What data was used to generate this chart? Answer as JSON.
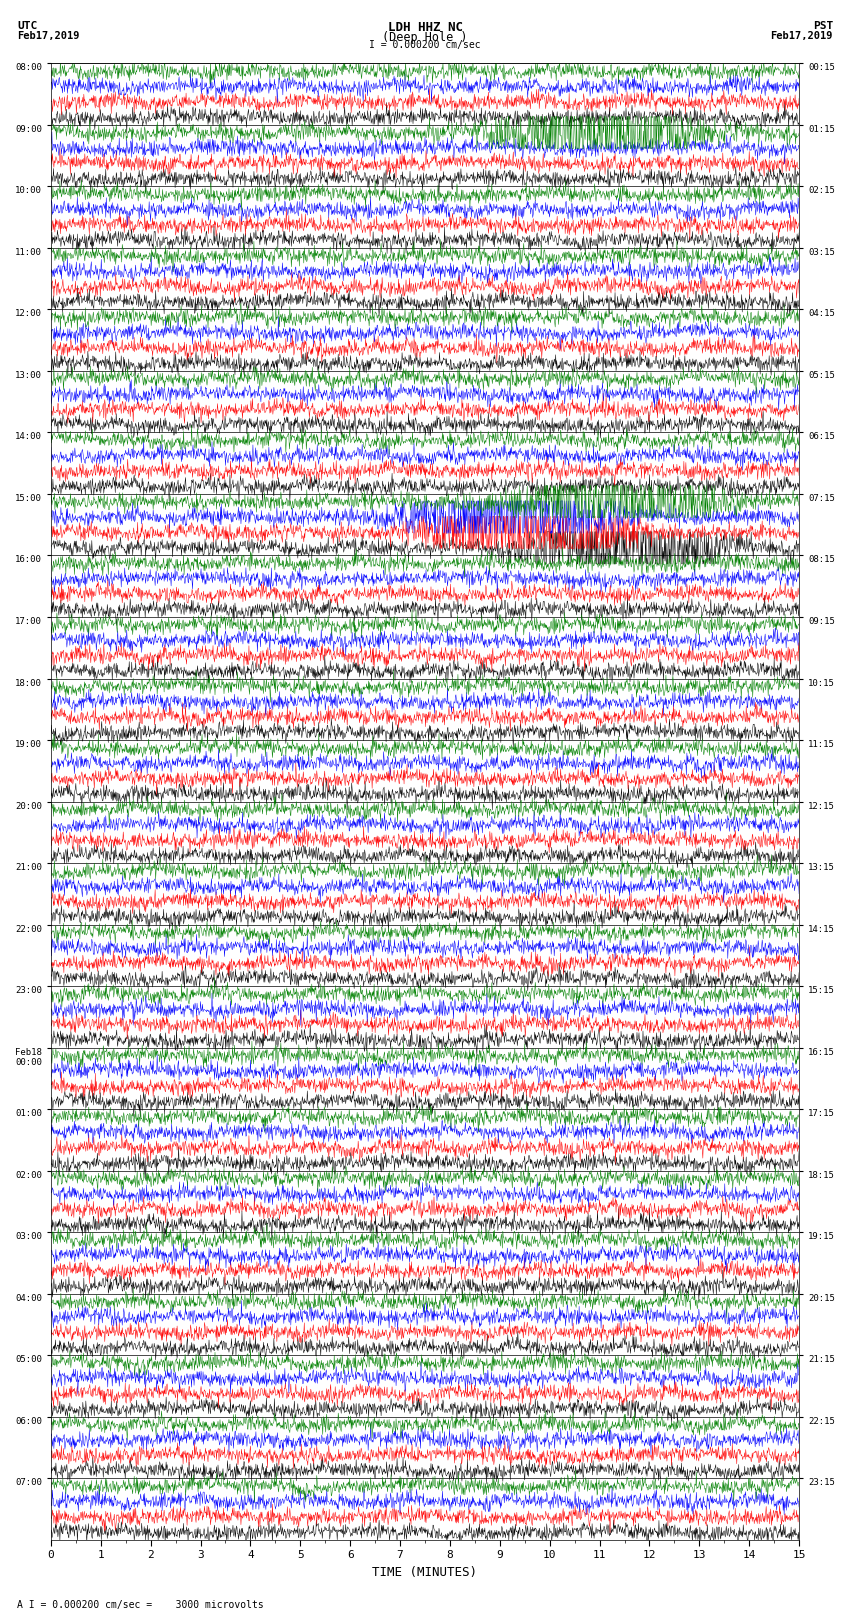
{
  "title_line1": "LDH HHZ NC",
  "title_line2": "(Deep Hole )",
  "scale_label": "I = 0.000200 cm/sec",
  "footer_label": "A I = 0.000200 cm/sec =    3000 microvolts",
  "xlabel": "TIME (MINUTES)",
  "utc_label1": "UTC",
  "utc_label2": "Feb17,2019",
  "pst_label1": "PST",
  "pst_label2": "Feb17,2019",
  "num_rows": 24,
  "minutes_per_row": 15,
  "colors": [
    "#000000",
    "#ff0000",
    "#0000ff",
    "#008000"
  ],
  "traces_per_row": 4,
  "bg_color": "#ffffff",
  "line_width": 0.35,
  "fig_width": 8.5,
  "fig_height": 16.13,
  "left_tick_labels": [
    "08:00",
    "09:00",
    "10:00",
    "11:00",
    "12:00",
    "13:00",
    "14:00",
    "15:00",
    "16:00",
    "17:00",
    "18:00",
    "19:00",
    "20:00",
    "21:00",
    "22:00",
    "23:00",
    "Feb18\n00:00",
    "01:00",
    "02:00",
    "03:00",
    "04:00",
    "05:00",
    "06:00",
    "07:00"
  ],
  "right_tick_labels": [
    "00:15",
    "01:15",
    "02:15",
    "03:15",
    "04:15",
    "05:15",
    "06:15",
    "07:15",
    "08:15",
    "09:15",
    "10:15",
    "11:15",
    "12:15",
    "13:15",
    "14:15",
    "15:15",
    "16:15",
    "17:15",
    "18:15",
    "19:15",
    "20:15",
    "21:15",
    "22:15",
    "23:15"
  ],
  "x_ticks": [
    0,
    1,
    2,
    3,
    4,
    5,
    6,
    7,
    8,
    9,
    10,
    11,
    12,
    13,
    14,
    15
  ],
  "earthquake_rows": [
    1,
    7
  ],
  "earthquake_channels": {
    "1": [
      3
    ],
    "7": [
      0,
      1,
      2,
      3
    ]
  }
}
